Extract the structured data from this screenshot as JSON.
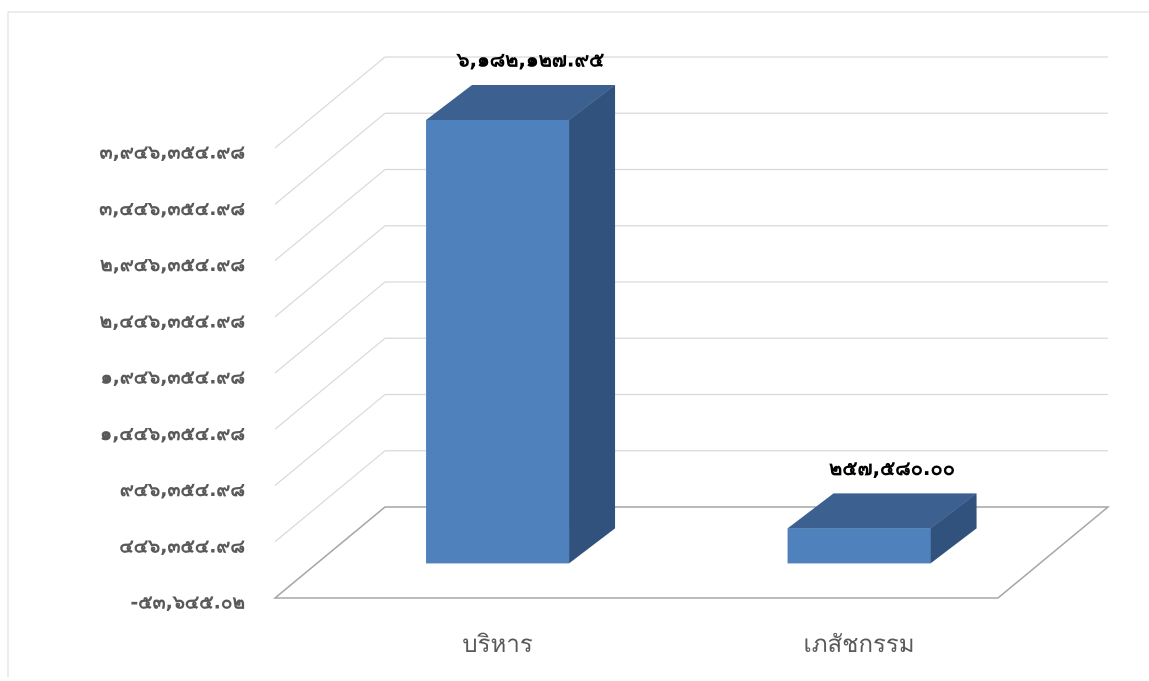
{
  "chart_data": {
    "type": "bar3d",
    "categories": [
      "บริหาร",
      "เภสัชกรรม"
    ],
    "values": [
      6182127.95,
      257580.0
    ],
    "value_labels": [
      "๖,๑๘๒,๑๒๗.๙๕",
      "๒๕๗,๕๘๐.๐๐"
    ],
    "color": "#4f81bd",
    "ylim": [
      -53645.02,
      3946354.98
    ],
    "yticks": [
      {
        "value": -53645.02,
        "label": "-๕๓,๖๔๕.๐๒"
      },
      {
        "value": 446354.98,
        "label": "๔๔๖,๓๕๔.๙๘"
      },
      {
        "value": 946354.98,
        "label": "๙๔๖,๓๕๔.๙๘"
      },
      {
        "value": 1446354.98,
        "label": "๑,๔๔๖,๓๕๔.๙๘"
      },
      {
        "value": 1946354.98,
        "label": "๑,๙๔๖,๓๕๔.๙๘"
      },
      {
        "value": 2446354.98,
        "label": "๒,๔๔๖,๓๕๔.๙๘"
      },
      {
        "value": 2946354.98,
        "label": "๒,๙๔๖,๓๕๔.๙๘"
      },
      {
        "value": 3446354.98,
        "label": "๓,๔๔๖,๓๕๔.๙๘"
      },
      {
        "value": 3946354.98,
        "label": "๓,๙๔๖,๓๕๔.๙๘"
      }
    ],
    "grid": true
  }
}
